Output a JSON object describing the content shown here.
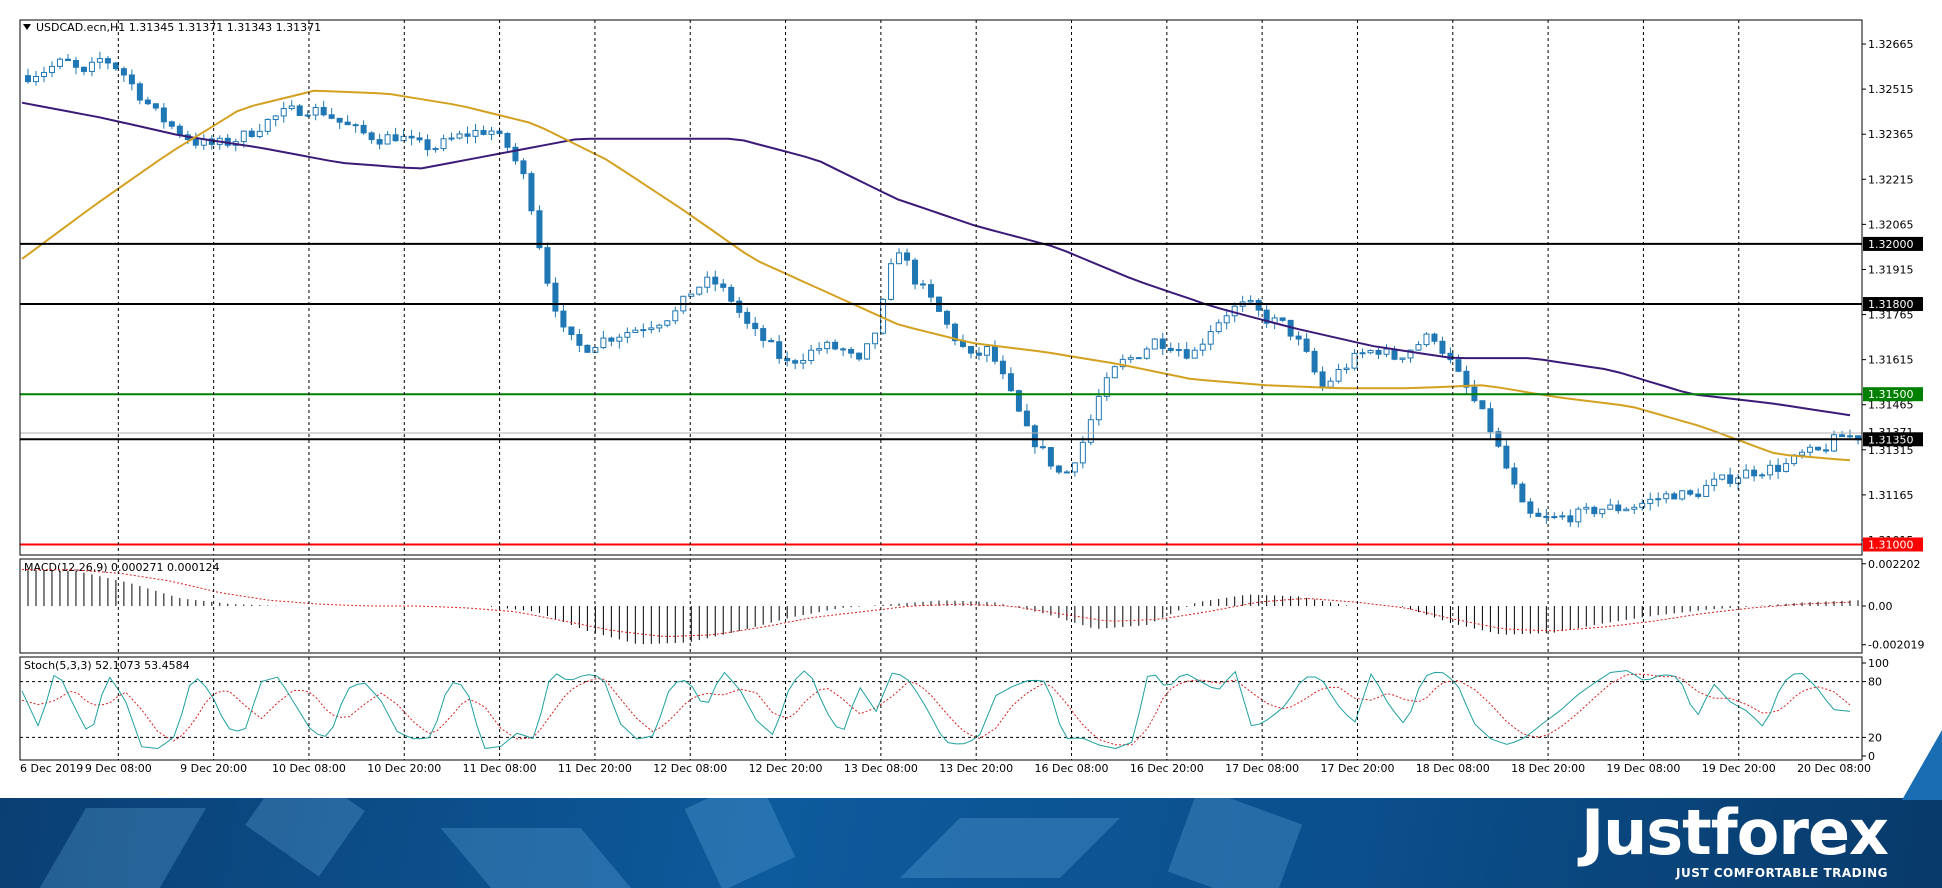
{
  "chart_data": {
    "type": "candlestick",
    "header": "USDCAD.ecn,H1  1.31345 1.31371 1.31343 1.31371",
    "symbol": "USDCAD.ecn,H1",
    "ohlc_last": [
      1.31345,
      1.31371,
      1.31343,
      1.31371
    ],
    "x_labels": [
      "6 Dec 2019",
      "9 Dec 08:00",
      "9 Dec 20:00",
      "10 Dec 08:00",
      "10 Dec 20:00",
      "11 Dec 08:00",
      "11 Dec 20:00",
      "12 Dec 08:00",
      "12 Dec 20:00",
      "13 Dec 08:00",
      "13 Dec 20:00",
      "16 Dec 08:00",
      "16 Dec 20:00",
      "17 Dec 08:00",
      "17 Dec 20:00",
      "18 Dec 08:00",
      "18 Dec 20:00",
      "19 Dec 08:00",
      "19 Dec 20:00",
      "20 Dec 08:00"
    ],
    "price_ticks": [
      "1.32665",
      "1.32515",
      "1.32365",
      "1.32215",
      "1.32065",
      "1.31915",
      "1.31765",
      "1.31615",
      "1.31465",
      "1.31315",
      "1.31165",
      "1.31015"
    ],
    "ylim": [
      1.30965,
      1.32745
    ],
    "close_anchors": [
      1.3256,
      1.3258,
      1.3261,
      1.3256,
      1.3262,
      1.3258,
      1.325,
      1.3243,
      1.3238,
      1.3234,
      1.3233,
      1.3234,
      1.3237,
      1.3241,
      1.3244,
      1.3245,
      1.3244,
      1.324,
      1.3237,
      1.3235,
      1.3236,
      1.3233,
      1.3232,
      1.3235,
      1.3237,
      1.3238,
      1.3232,
      1.322,
      1.319,
      1.317,
      1.3165,
      1.3168,
      1.317,
      1.3172,
      1.3174,
      1.3177,
      1.3185,
      1.3188,
      1.3182,
      1.3172,
      1.3167,
      1.316,
      1.3163,
      1.3166,
      1.3165,
      1.316,
      1.3173,
      1.32,
      1.3188,
      1.318,
      1.317,
      1.3162,
      1.3165,
      1.3152,
      1.3138,
      1.313,
      1.3122,
      1.3133,
      1.315,
      1.316,
      1.3163,
      1.3168,
      1.3166,
      1.3163,
      1.3172,
      1.3178,
      1.318,
      1.3175,
      1.3173,
      1.3165,
      1.3152,
      1.3158,
      1.3163,
      1.3165,
      1.3162,
      1.3166,
      1.317,
      1.316,
      1.315,
      1.314,
      1.3125,
      1.311,
      1.3108,
      1.3109,
      1.311,
      1.3112,
      1.3112,
      1.3113,
      1.3115,
      1.3117,
      1.3116,
      1.312,
      1.3122,
      1.3124,
      1.3125,
      1.3126,
      1.313,
      1.3131,
      1.3136,
      1.3136
    ],
    "ema_fast_anchors": [
      1.3195,
      1.3213,
      1.323,
      1.3245,
      1.3251,
      1.325,
      1.3246,
      1.324,
      1.3228,
      1.3212,
      1.3195,
      1.3184,
      1.3173,
      1.3167,
      1.3164,
      1.316,
      1.3155,
      1.3153,
      1.3152,
      1.3152,
      1.3153,
      1.3149,
      1.3146,
      1.3139,
      1.313,
      1.3128
    ],
    "ema_slow_anchors": [
      1.3247,
      1.3242,
      1.3236,
      1.3232,
      1.3227,
      1.3225,
      1.323,
      1.3235,
      1.3235,
      1.3235,
      1.3228,
      1.3215,
      1.3206,
      1.3199,
      1.3188,
      1.3179,
      1.3172,
      1.3166,
      1.3162,
      1.3162,
      1.3158,
      1.315,
      1.3147,
      1.3143
    ],
    "levels": [
      {
        "price": 1.32,
        "label": "1.32000",
        "color": "#000000"
      },
      {
        "price": 1.318,
        "label": "1.31800",
        "color": "#000000"
      },
      {
        "price": 1.315,
        "label": "1.31500",
        "color": "#008000"
      },
      {
        "price": 1.3135,
        "label": "1.31350",
        "color": "#000000"
      },
      {
        "price": 1.31,
        "label": "1.31000",
        "color": "#ff0000"
      }
    ],
    "current_price": {
      "price": 1.31371,
      "label": "1.31371"
    },
    "macd": {
      "header": "MACD(12,26,9) 0.000271 0.000124",
      "ticks": [
        "0.002202",
        "0.00",
        "-0.002019"
      ],
      "ylim": [
        -0.00245,
        0.00245
      ],
      "hist_anchors": [
        0.0019,
        0.0018,
        0.0012,
        0.0004,
        0.0001,
        0.0,
        0.0,
        0.0,
        0.0,
        0.0,
        -0.0003,
        -0.0013,
        -0.002,
        -0.0019,
        -0.0013,
        -0.0006,
        -0.0001,
        0.0001,
        0.0003,
        0.0002,
        -0.0004,
        -0.0012,
        -0.001,
        0.0002,
        0.0006,
        0.0005,
        0.0,
        0.0,
        -0.0009,
        -0.0015,
        -0.0014,
        -0.0009,
        -0.0005,
        -0.0002,
        0.0,
        0.0002,
        0.0003
      ],
      "signal_anchors": [
        0.0019,
        0.0019,
        0.0017,
        0.0013,
        0.0007,
        0.0003,
        0.0001,
        0.0,
        0.0,
        -0.0001,
        -0.0003,
        -0.0008,
        -0.0013,
        -0.0016,
        -0.0015,
        -0.0011,
        -0.0006,
        -0.0003,
        0.0,
        0.0001,
        0.0,
        -0.0004,
        -0.0008,
        -0.0007,
        -0.0003,
        0.0002,
        0.0004,
        0.0002,
        -0.0001,
        -0.0007,
        -0.0012,
        -0.0013,
        -0.0011,
        -0.0008,
        -0.0004,
        -0.0001,
        0.0001,
        0.0002
      ]
    },
    "stoch": {
      "header": "Stoch(5,3,3) 52.1073 53.4584",
      "ticks": [
        "100",
        "80",
        "20",
        "0"
      ],
      "levels": [
        80,
        20
      ],
      "ylim": [
        0,
        100
      ],
      "main_anchors": [
        70,
        30,
        95,
        55,
        20,
        88,
        62,
        10,
        8,
        22,
        88,
        70,
        30,
        25,
        80,
        85,
        55,
        25,
        20,
        72,
        80,
        60,
        25,
        18,
        20,
        80,
        75,
        8,
        10,
        25,
        18,
        92,
        80,
        88,
        85,
        35,
        18,
        22,
        78,
        82,
        50,
        92,
        72,
        38,
        22,
        78,
        95,
        50,
        22,
        75,
        48,
        92,
        80,
        50,
        15,
        12,
        20,
        65,
        75,
        82,
        80,
        18,
        20,
        12,
        8,
        15,
        95,
        72,
        90,
        80,
        70,
        92,
        30,
        40,
        55,
        85,
        85,
        55,
        35,
        90,
        55,
        32,
        85,
        92,
        78,
        35,
        18,
        12,
        20,
        35,
        48,
        65,
        78,
        90,
        92,
        80,
        88,
        85,
        40,
        78,
        58,
        48,
        30,
        78,
        92,
        75,
        50,
        48
      ],
      "signal_anchors": [
        60,
        55,
        60,
        72,
        55,
        55,
        70,
        50,
        25,
        15,
        35,
        65,
        72,
        55,
        40,
        58,
        72,
        68,
        45,
        40,
        55,
        68,
        55,
        35,
        22,
        40,
        62,
        55,
        30,
        18,
        20,
        45,
        70,
        80,
        85,
        62,
        40,
        25,
        40,
        60,
        68,
        65,
        72,
        68,
        45,
        40,
        62,
        75,
        62,
        45,
        52,
        65,
        82,
        70,
        48,
        28,
        18,
        30,
        55,
        70,
        80,
        60,
        35,
        18,
        12,
        12,
        32,
        70,
        80,
        82,
        78,
        82,
        68,
        55,
        50,
        60,
        72,
        75,
        62,
        60,
        68,
        60,
        58,
        78,
        82,
        72,
        55,
        35,
        22,
        20,
        30,
        45,
        62,
        78,
        88,
        88,
        85,
        86,
        70,
        62,
        62,
        55,
        45,
        50,
        68,
        75,
        70,
        55
      ]
    }
  },
  "brand": {
    "logo": "Justforex",
    "tagline": "JUST COMFORTABLE TRADING"
  }
}
